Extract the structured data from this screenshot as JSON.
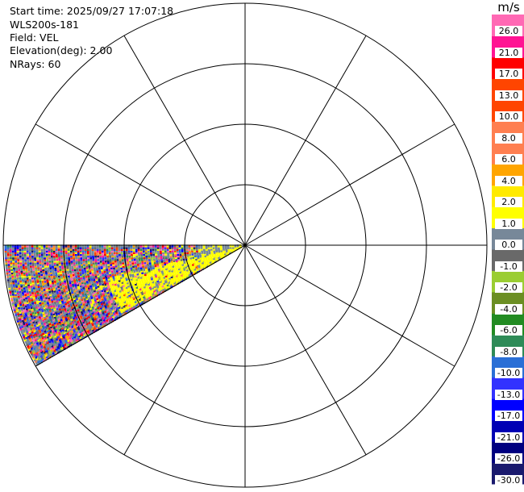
{
  "header": {
    "start_time": "Start time: 2025/09/27 17:07:18",
    "site": "WLS200s-181",
    "field": "Field: VEL",
    "elevation": "Elevation(deg): 2.00",
    "nrays": "NRays: 60"
  },
  "chart_data": {
    "type": "heatmap",
    "subtype": "radar-ppi",
    "rings": 4,
    "spokes_deg": [
      0,
      30,
      60,
      90,
      120,
      150,
      180,
      210,
      240,
      270,
      300,
      330
    ],
    "sector_azimuth_deg": [
      240,
      270
    ],
    "grid": true,
    "colorbar": {
      "unit": "m/s",
      "placement": "right",
      "colors": [
        "#1a1a6e",
        "#000080",
        "#0000b4",
        "#0000ff",
        "#3232ff",
        "#2a6fd6",
        "#2e8b57",
        "#228b22",
        "#6b8e23",
        "#9acd32",
        "#696969",
        "#778899",
        "#ffff00",
        "#ffea00",
        "#ffa500",
        "#ff7f50",
        "#ff7f50",
        "#ff4500",
        "#ff4500",
        "#ff0000",
        "#ff1493",
        "#ff69b4"
      ],
      "ticks": [
        "26.0",
        "21.0",
        "17.0",
        "13.0",
        "10.0",
        "8.0",
        "6.0",
        "4.0",
        "2.0",
        "1.0",
        "0.0",
        "-1.0",
        "-2.0",
        "-4.0",
        "-6.0",
        "-8.0",
        "-10.0",
        "-13.0",
        "-17.0",
        "-21.0",
        "-26.0",
        "-30.0"
      ]
    }
  }
}
